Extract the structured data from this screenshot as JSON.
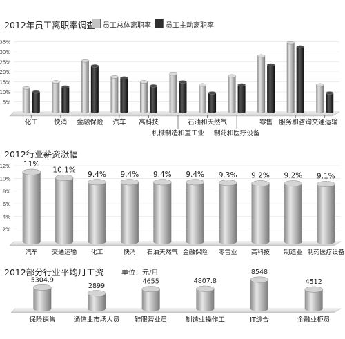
{
  "chart_data": [
    {
      "type": "bar",
      "title": "2012年员工离职率调查",
      "series": [
        {
          "name": "员工总体离职率",
          "values": [
            12.0,
            15.0,
            25.5,
            17.5,
            15.0,
            19.0,
            13.5,
            18.0,
            28.0,
            34.5,
            13.5
          ]
        },
        {
          "name": "员工主动离职率",
          "values": [
            10.0,
            12.5,
            23.0,
            17.0,
            13.0,
            15.0,
            9.5,
            13.5,
            23.5,
            32.5,
            9.5
          ]
        }
      ],
      "categories": [
        "化工",
        "快消",
        "金融保险",
        "汽车",
        "高科技",
        "机械制造和重工业",
        "石油和天然气",
        "制药和医疗设备",
        "零售",
        "服务和咨询",
        "交通运输"
      ],
      "yticks": [
        "5%",
        "10%",
        "15%",
        "20%",
        "25%",
        "30%",
        "35%"
      ],
      "ylim": [
        0,
        38
      ],
      "colors": {
        "series0": "#bdbdbd",
        "series1": "#333333"
      },
      "legend": "top"
    },
    {
      "type": "bar",
      "title": "2012行业薪资涨幅",
      "categories": [
        "汽车",
        "交通运输",
        "化工",
        "快消",
        "石油天然气",
        "金融保险",
        "零售业",
        "高科技",
        "制造业",
        "制药医疗设备"
      ],
      "values": [
        11.0,
        10.1,
        9.4,
        9.4,
        9.4,
        9.4,
        9.3,
        9.2,
        9.2,
        9.1
      ],
      "labels": [
        "11%",
        "10.1%",
        "9.4%",
        "9.4%",
        "9.4%",
        "9.4%",
        "9.3%",
        "9.2%",
        "9.2%",
        "9.1%"
      ],
      "yticks": [
        "2%",
        "4%",
        "6%",
        "8%",
        "10%",
        "12%"
      ],
      "ylim": [
        0,
        12
      ]
    },
    {
      "type": "bar",
      "title": "2012部分行业平均月工资",
      "unit": "单位：元/月",
      "categories": [
        "保险销售",
        "通信业市场人员",
        "鞋服营业员",
        "制造业操作工",
        "IT综合",
        "金融业柜员"
      ],
      "values": [
        5304.9,
        2899,
        4655,
        4807.8,
        8548,
        4512
      ],
      "labels": [
        "5304.9",
        "2899",
        "4655",
        "4807.8",
        "8548",
        "4512"
      ]
    }
  ]
}
